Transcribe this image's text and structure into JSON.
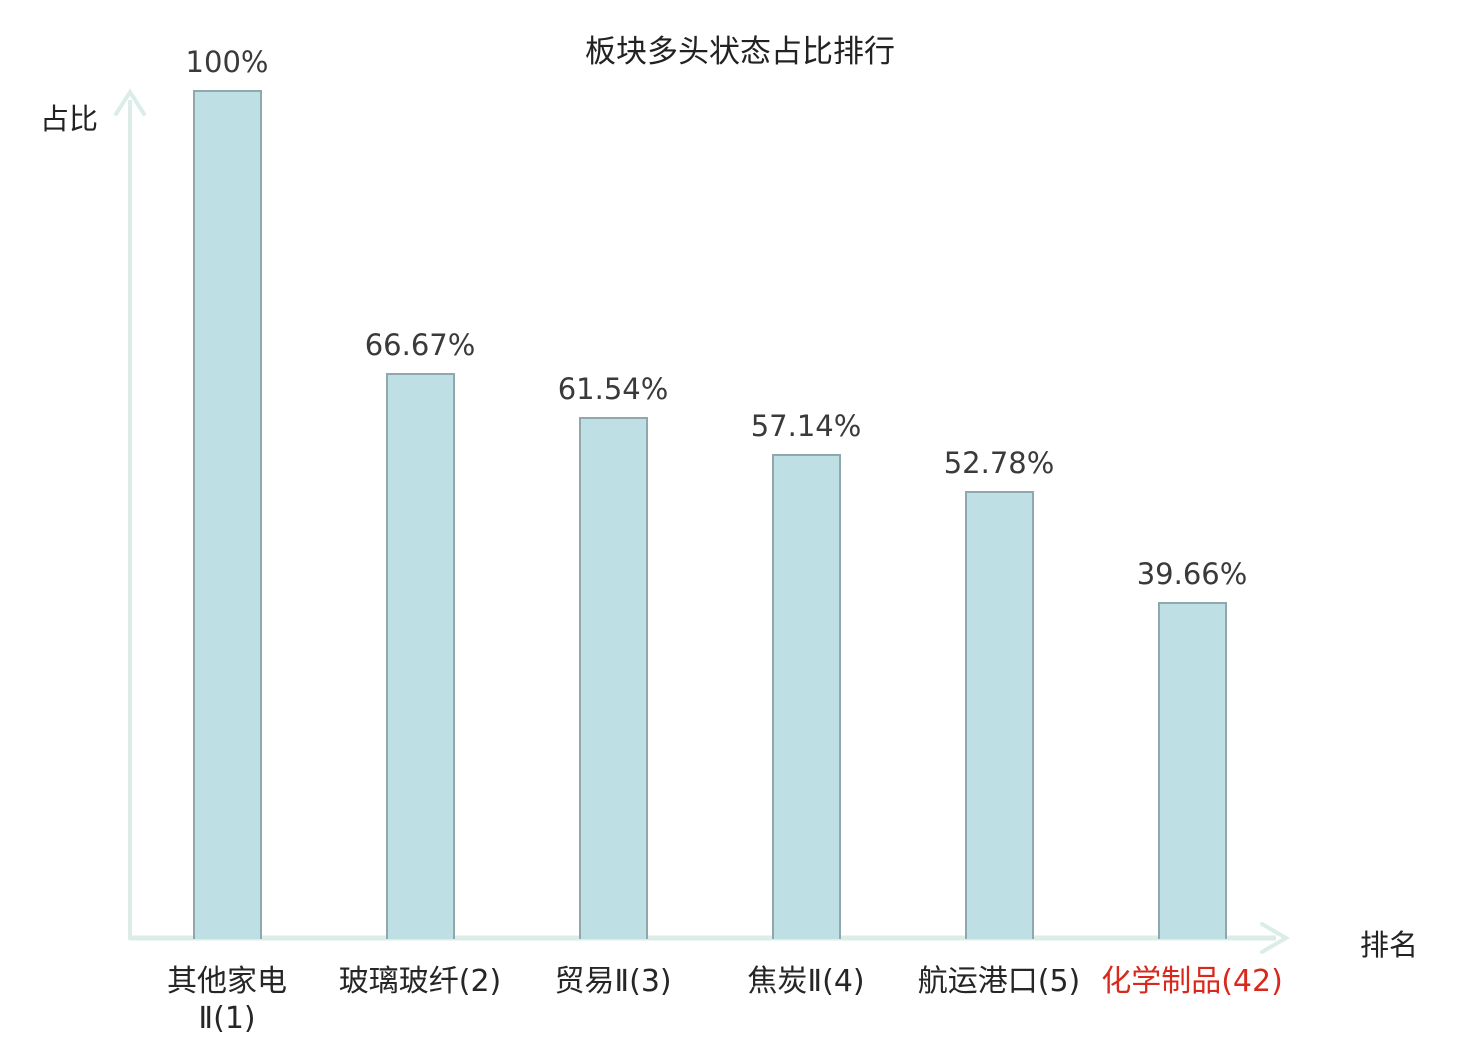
{
  "title": "板块多头状态占比排行",
  "y_axis_label": "占比",
  "x_axis_label": "排名",
  "colors": {
    "bar_fill": "#bedfe3",
    "bar_border": "#90a7ae",
    "axis": "#dcede9",
    "value_text": "#3a3a3a",
    "category_text": "#262626",
    "highlight_text": "#d9281c"
  },
  "chart_data": {
    "type": "bar",
    "title": "板块多头状态占比排行",
    "xlabel": "排名",
    "ylabel": "占比",
    "ylim": [
      0,
      100
    ],
    "grid": false,
    "legend": "none",
    "categories": [
      "其他家电Ⅱ(1)",
      "玻璃玻纤(2)",
      "贸易Ⅱ(3)",
      "焦炭Ⅱ(4)",
      "航运港口(5)",
      "化学制品(42)"
    ],
    "category_label_lines": [
      [
        "其他家电",
        "Ⅱ(1)"
      ],
      [
        "玻璃玻纤(2)"
      ],
      [
        "贸易Ⅱ(3)"
      ],
      [
        "焦炭Ⅱ(4)"
      ],
      [
        "航运港口(5)"
      ],
      [
        "化学制品(42)"
      ]
    ],
    "values": [
      100,
      66.67,
      61.54,
      57.14,
      52.78,
      39.66
    ],
    "value_labels": [
      "100%",
      "66.67%",
      "61.54%",
      "57.14%",
      "52.78%",
      "39.66%"
    ],
    "highlighted_category_index": 5
  }
}
